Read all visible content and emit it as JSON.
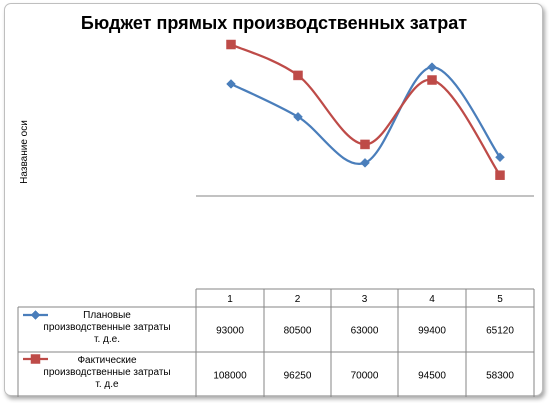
{
  "chart_data": {
    "type": "line",
    "title": "Бюджет прямых производственных затрат",
    "ylabel": "Название оси",
    "xlabel": "",
    "categories": [
      "1",
      "2",
      "3",
      "4",
      "5"
    ],
    "series": [
      {
        "name_lines": [
          "Плановые",
          "производственные затраты",
          "т. д.е."
        ],
        "values": [
          93000,
          80500,
          63000,
          99400,
          65120
        ],
        "labels": [
          "93000",
          "80500",
          "63000",
          "99400",
          "65120"
        ],
        "color": "#4a7ebb",
        "marker": "diamond"
      },
      {
        "name_lines": [
          "Фактические",
          "производственные затраты",
          "т. д.е"
        ],
        "values": [
          108000,
          96250,
          70000,
          94500,
          58300
        ],
        "labels": [
          "108000",
          "96250",
          "70000",
          "94500",
          "58300"
        ],
        "color": "#be4b48",
        "marker": "square"
      }
    ],
    "yaxis_visible": false,
    "smooth": true,
    "data_table": true
  }
}
